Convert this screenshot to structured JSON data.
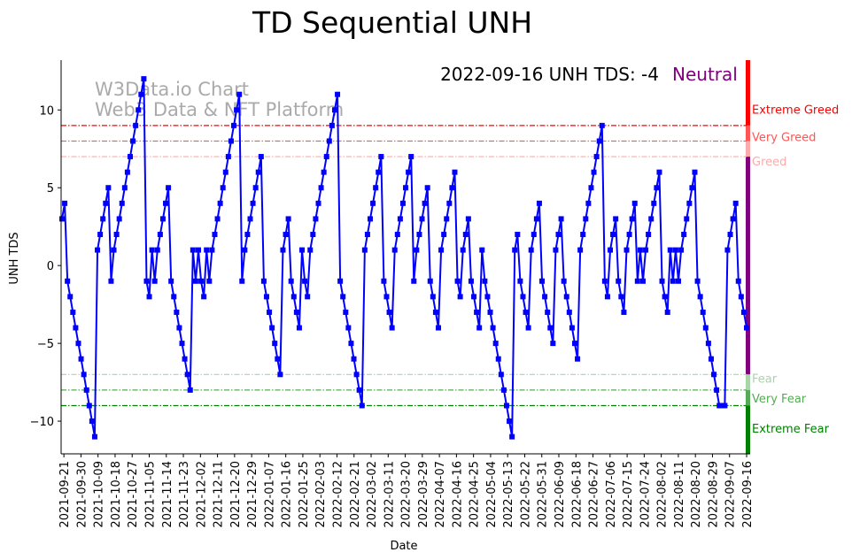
{
  "chart_data": {
    "type": "line",
    "title": "TD Sequential UNH",
    "xlabel": "Date",
    "ylabel": "UNH TDS",
    "ylim": [
      -12.1,
      13.2
    ],
    "yticks": [
      -10,
      -5,
      0,
      5,
      10
    ],
    "x_start": "2021-09-20",
    "x_end": "2022-09-16",
    "xtick_labels": [
      "2021-09-21",
      "2021-09-30",
      "2021-10-09",
      "2021-10-18",
      "2021-10-27",
      "2021-11-05",
      "2021-11-14",
      "2021-11-23",
      "2021-12-02",
      "2021-12-11",
      "2021-12-20",
      "2021-12-29",
      "2022-01-07",
      "2022-01-16",
      "2022-01-25",
      "2022-02-03",
      "2022-02-12",
      "2022-02-21",
      "2022-03-02",
      "2022-03-11",
      "2022-03-20",
      "2022-03-29",
      "2022-04-07",
      "2022-04-16",
      "2022-04-25",
      "2022-05-04",
      "2022-05-13",
      "2022-05-22",
      "2022-05-31",
      "2022-06-09",
      "2022-06-18",
      "2022-06-27",
      "2022-07-06",
      "2022-07-15",
      "2022-07-24",
      "2022-08-02",
      "2022-08-11",
      "2022-08-20",
      "2022-08-29",
      "2022-09-07",
      "2022-09-16"
    ],
    "series": [
      {
        "name": "UNH TDS",
        "color": "#0000ff",
        "values": [
          3,
          4,
          -1,
          -2,
          -3,
          -4,
          -5,
          -6,
          -7,
          -8,
          -9,
          -10,
          -11,
          1,
          2,
          3,
          4,
          5,
          -1,
          1,
          2,
          3,
          4,
          5,
          6,
          7,
          8,
          9,
          10,
          11,
          12,
          -1,
          -2,
          1,
          -1,
          1,
          2,
          3,
          4,
          5,
          -1,
          -2,
          -3,
          -4,
          -5,
          -6,
          -7,
          -8,
          1,
          -1,
          1,
          -1,
          -2,
          1,
          -1,
          1,
          2,
          3,
          4,
          5,
          6,
          7,
          8,
          9,
          10,
          11,
          -1,
          1,
          2,
          3,
          4,
          5,
          6,
          7,
          -1,
          -2,
          -3,
          -4,
          -5,
          -6,
          -7,
          1,
          2,
          3,
          -1,
          -2,
          -3,
          -4,
          1,
          -1,
          -2,
          1,
          2,
          3,
          4,
          5,
          6,
          7,
          8,
          9,
          10,
          11,
          -1,
          -2,
          -3,
          -4,
          -5,
          -6,
          -7,
          -8,
          -9,
          1,
          2,
          3,
          4,
          5,
          6,
          7,
          -1,
          -2,
          -3,
          -4,
          1,
          2,
          3,
          4,
          5,
          6,
          7,
          -1,
          1,
          2,
          3,
          4,
          5,
          -1,
          -2,
          -3,
          -4,
          1,
          2,
          3,
          4,
          5,
          6,
          -1,
          -2,
          1,
          2,
          3,
          -1,
          -2,
          -3,
          -4,
          1,
          -1,
          -2,
          -3,
          -4,
          -5,
          -6,
          -7,
          -8,
          -9,
          -10,
          -11,
          1,
          2,
          -1,
          -2,
          -3,
          -4,
          1,
          2,
          3,
          4,
          -1,
          -2,
          -3,
          -4,
          -5,
          1,
          2,
          3,
          -1,
          -2,
          -3,
          -4,
          -5,
          -6,
          1,
          2,
          3,
          4,
          5,
          6,
          7,
          8,
          9,
          -1,
          -2,
          1,
          2,
          3,
          -1,
          -2,
          -3,
          1,
          2,
          3,
          4,
          -1,
          1,
          -1,
          1,
          2,
          3,
          4,
          5,
          6,
          -1,
          -2,
          -3,
          1,
          -1,
          1,
          -1,
          1,
          2,
          3,
          4,
          5,
          6,
          -1,
          -2,
          -3,
          -4,
          -5,
          -6,
          -7,
          -8,
          -9,
          -9,
          -9,
          1,
          2,
          3,
          4,
          -1,
          -2,
          -3,
          -4
        ]
      }
    ],
    "thresholds": [
      {
        "label": "Extreme Greed",
        "value": 9,
        "color": "#ff0000",
        "band": [
          9,
          13.2
        ]
      },
      {
        "label": "Very Greed",
        "value": 8,
        "color": "#ff5555",
        "band": [
          8,
          9
        ]
      },
      {
        "label": "Greed",
        "value": 7,
        "color": "#ffaaaa",
        "band": [
          7,
          8
        ]
      },
      {
        "label": "Fear",
        "value": -7,
        "color": "#aad4aa",
        "band": [
          -8,
          -7
        ]
      },
      {
        "label": "Very Fear",
        "value": -8,
        "color": "#55aa55",
        "band": [
          -9,
          -8
        ]
      },
      {
        "label": "Extreme Fear",
        "value": -9,
        "color": "#008000",
        "band": [
          -12.1,
          -9
        ]
      }
    ],
    "neutral_band": {
      "color": "#800080",
      "band": [
        -7,
        7
      ]
    },
    "annotation": {
      "text": "2022-09-16 UNH TDS: -4",
      "status": "Neutral",
      "status_color": "#800080"
    },
    "watermark": [
      "W3Data.io Chart",
      "Web3 Data & NFT Platform"
    ]
  }
}
